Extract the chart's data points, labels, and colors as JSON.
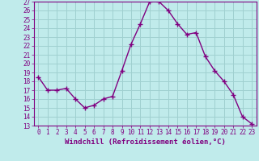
{
  "x": [
    0,
    1,
    2,
    3,
    4,
    5,
    6,
    7,
    8,
    9,
    10,
    11,
    12,
    13,
    14,
    15,
    16,
    17,
    18,
    19,
    20,
    21,
    22,
    23
  ],
  "y": [
    18.5,
    17.0,
    17.0,
    17.2,
    16.0,
    15.0,
    15.3,
    16.0,
    16.3,
    19.2,
    22.2,
    24.5,
    27.0,
    27.0,
    26.0,
    24.5,
    23.3,
    23.5,
    20.8,
    19.2,
    18.0,
    16.5,
    14.0,
    13.2
  ],
  "line_color": "#800080",
  "marker": "+",
  "marker_size": 4,
  "bg_color": "#c0ebeb",
  "grid_color": "#a0d0d0",
  "xlabel": "Windchill (Refroidissement éolien,°C)",
  "xlabel_color": "#800080",
  "tick_color": "#800080",
  "ylim": [
    13,
    27
  ],
  "xlim": [
    -0.5,
    23.5
  ],
  "yticks": [
    13,
    14,
    15,
    16,
    17,
    18,
    19,
    20,
    21,
    22,
    23,
    24,
    25,
    26,
    27
  ],
  "xticks": [
    0,
    1,
    2,
    3,
    4,
    5,
    6,
    7,
    8,
    9,
    10,
    11,
    12,
    13,
    14,
    15,
    16,
    17,
    18,
    19,
    20,
    21,
    22,
    23
  ],
  "line_width": 1.0,
  "font_size": 5.5,
  "label_font_size": 6.5
}
